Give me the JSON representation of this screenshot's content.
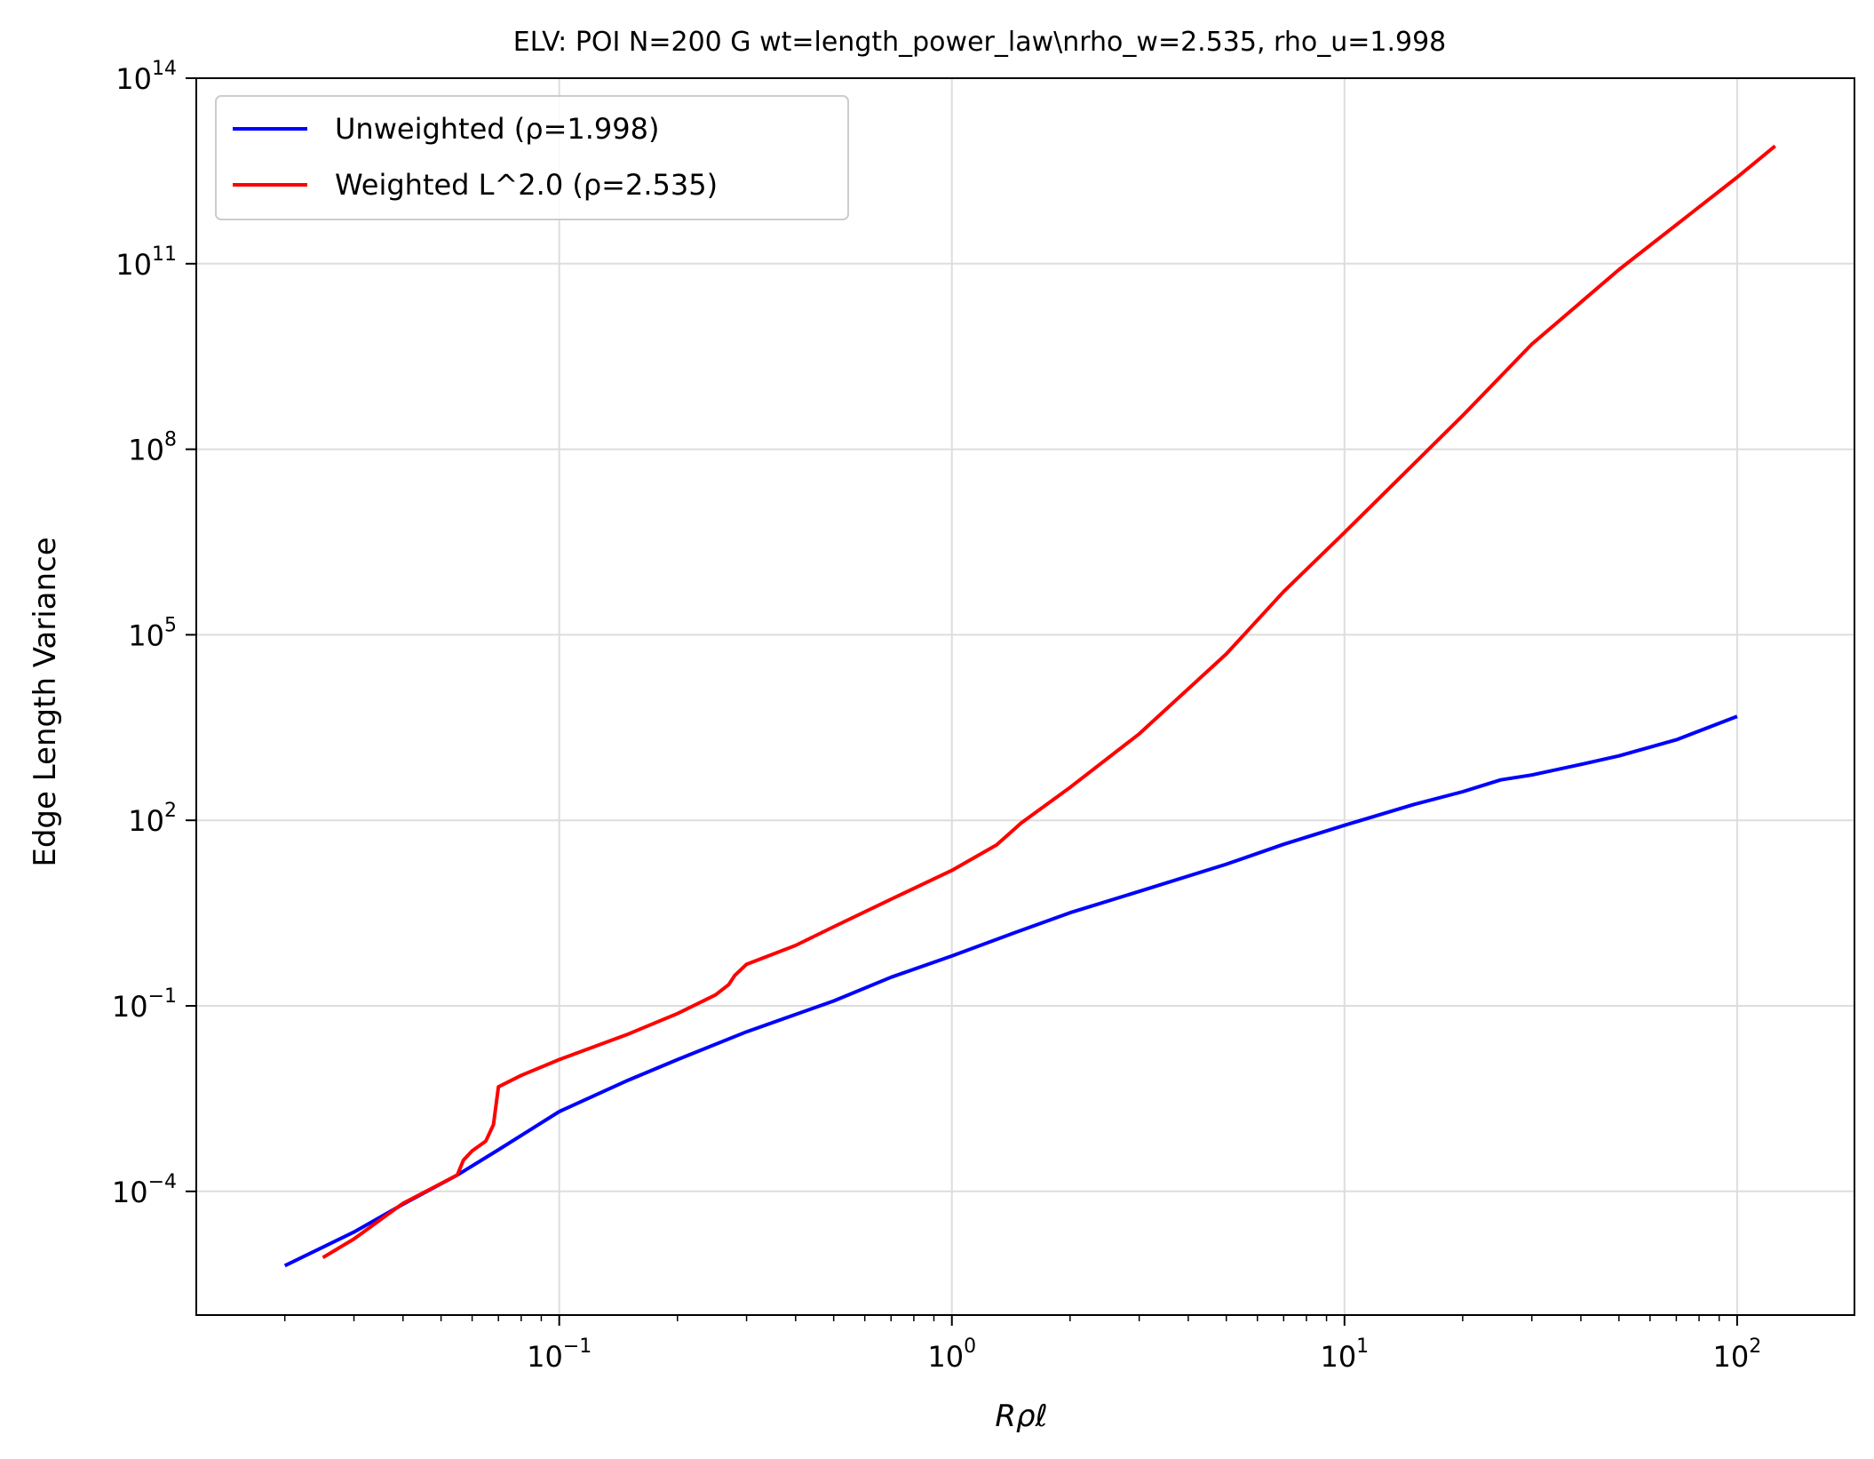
{
  "chart_data": {
    "type": "line",
    "title": "ELV: POI N=200 G wt=length_power_law\\nrho_w=2.535, rho_u=1.998",
    "xlabel": "Rρℓ",
    "ylabel": "Edge Length Variance",
    "xscale": "log",
    "yscale": "log",
    "xlim": [
      0.0119,
      199
    ],
    "ylim": [
      1e-06,
      100000000000000.0
    ],
    "grid": true,
    "legend_position": "top-left",
    "x_ticks": [
      {
        "value": 0.1,
        "base": "10",
        "exp": "−1"
      },
      {
        "value": 1,
        "base": "10",
        "exp": "0"
      },
      {
        "value": 10,
        "base": "10",
        "exp": "1"
      },
      {
        "value": 100,
        "base": "10",
        "exp": "2"
      }
    ],
    "y_ticks": [
      {
        "value": 0.0001,
        "base": "10",
        "exp": "−4"
      },
      {
        "value": 0.1,
        "base": "10",
        "exp": "−1"
      },
      {
        "value": 100,
        "base": "10",
        "exp": "2"
      },
      {
        "value": 100000,
        "base": "10",
        "exp": "5"
      },
      {
        "value": 100000000,
        "base": "10",
        "exp": "8"
      },
      {
        "value": 100000000000,
        "base": "10",
        "exp": "11"
      },
      {
        "value": 100000000000000,
        "base": "10",
        "exp": "14"
      }
    ],
    "series": [
      {
        "name": "Unweighted (ρ=1.998)",
        "color": "#0000ff",
        "x": [
          0.02,
          0.03,
          0.04,
          0.055,
          0.07,
          0.1,
          0.15,
          0.2,
          0.3,
          0.5,
          0.7,
          1,
          1.5,
          2,
          3,
          5,
          7,
          10,
          15,
          20,
          25,
          30,
          40,
          50,
          70,
          100
        ],
        "y": [
          6.3e-06,
          2.2e-05,
          6.2e-05,
          0.000184,
          0.00047,
          0.00195,
          0.0063,
          0.0135,
          0.038,
          0.12,
          0.29,
          0.64,
          1.66,
          3.2,
          7.1,
          19.5,
          41,
          83,
          180,
          290,
          450,
          540,
          800,
          1100,
          2000,
          4800
        ]
      },
      {
        "name": "Weighted L^2.0 (ρ=2.535)",
        "color": "#ff0000",
        "x": [
          0.025,
          0.03,
          0.04,
          0.055,
          0.057,
          0.06,
          0.065,
          0.068,
          0.07,
          0.08,
          0.1,
          0.15,
          0.2,
          0.25,
          0.27,
          0.28,
          0.3,
          0.4,
          0.5,
          0.7,
          1,
          1.3,
          1.5,
          2,
          3,
          5,
          7,
          10,
          20,
          30,
          50,
          100,
          125
        ],
        "y": [
          8.5e-06,
          1.7e-05,
          6.4e-05,
          0.000184,
          0.00032,
          0.00045,
          0.00065,
          0.0012,
          0.0049,
          0.0075,
          0.0135,
          0.035,
          0.075,
          0.15,
          0.22,
          0.31,
          0.47,
          0.95,
          1.9,
          5.3,
          15.5,
          40,
          90,
          340,
          2500,
          49000,
          500000,
          4500000,
          350000000,
          5000000000,
          80000000000,
          2500000000000,
          8000000000000
        ]
      }
    ]
  }
}
